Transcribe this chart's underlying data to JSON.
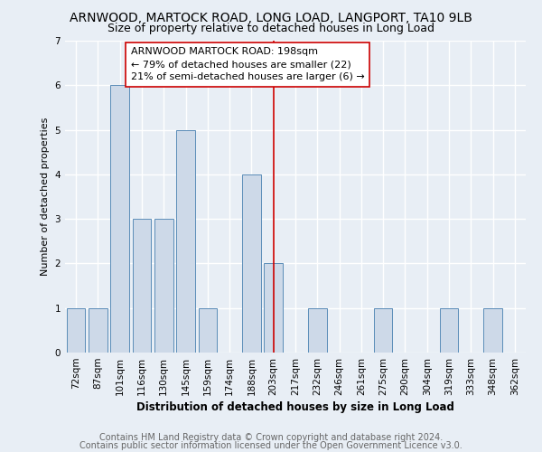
{
  "title": "ARNWOOD, MARTOCK ROAD, LONG LOAD, LANGPORT, TA10 9LB",
  "subtitle": "Size of property relative to detached houses in Long Load",
  "xlabel": "Distribution of detached houses by size in Long Load",
  "ylabel": "Number of detached properties",
  "categories": [
    "72sqm",
    "87sqm",
    "101sqm",
    "116sqm",
    "130sqm",
    "145sqm",
    "159sqm",
    "174sqm",
    "188sqm",
    "203sqm",
    "217sqm",
    "232sqm",
    "246sqm",
    "261sqm",
    "275sqm",
    "290sqm",
    "304sqm",
    "319sqm",
    "333sqm",
    "348sqm",
    "362sqm"
  ],
  "values": [
    1,
    1,
    6,
    3,
    3,
    5,
    1,
    0,
    4,
    2,
    0,
    1,
    0,
    0,
    1,
    0,
    0,
    1,
    0,
    1,
    0
  ],
  "bar_color": "#cdd9e8",
  "bar_edge_color": "#5b8db8",
  "vline_index": 9,
  "annotation_title": "ARNWOOD MARTOCK ROAD: 198sqm",
  "annotation_line1": "← 79% of detached houses are smaller (22)",
  "annotation_line2": "21% of semi-detached houses are larger (6) →",
  "vline_color": "#cc0000",
  "ylim": [
    0,
    7
  ],
  "yticks": [
    0,
    1,
    2,
    3,
    4,
    5,
    6,
    7
  ],
  "footer1": "Contains HM Land Registry data © Crown copyright and database right 2024.",
  "footer2": "Contains public sector information licensed under the Open Government Licence v3.0.",
  "bg_color": "#e8eef5",
  "plot_bg_color": "#e8eef5",
  "grid_color": "#ffffff",
  "title_fontsize": 10,
  "subtitle_fontsize": 9,
  "xlabel_fontsize": 8.5,
  "ylabel_fontsize": 8,
  "tick_fontsize": 7.5,
  "annotation_fontsize": 8,
  "footer_fontsize": 7
}
